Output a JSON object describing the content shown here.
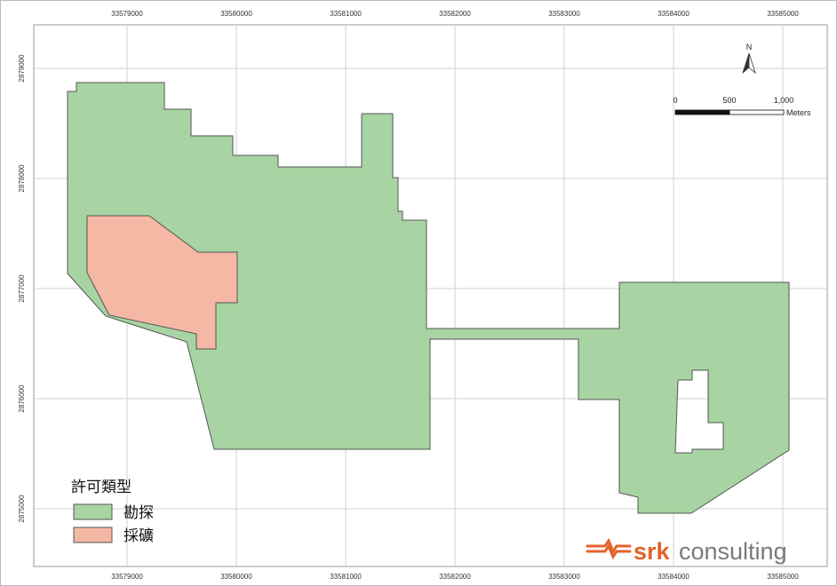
{
  "map": {
    "x_ticks_top": [
      "33579000",
      "33580000",
      "33581000",
      "33582000",
      "33583000",
      "33584000",
      "33585000"
    ],
    "x_ticks_bottom": [
      "33579000",
      "33580000",
      "33581000",
      "33582000",
      "33583000",
      "33584000",
      "33585000"
    ],
    "y_ticks": [
      "2879000",
      "2878000",
      "2877000",
      "2876000",
      "2875000"
    ],
    "north_label": "N",
    "scale": {
      "labels": [
        "0",
        "500",
        "1,000"
      ],
      "unit": "Meters"
    },
    "legend": {
      "title": "許可類型",
      "items": [
        {
          "label": "勘探",
          "color": "#a7d4a2"
        },
        {
          "label": "採礦",
          "color": "#f4b8a4"
        }
      ]
    },
    "brand": {
      "bold": "srk",
      "rest": "consulting",
      "color": "#e2632a",
      "text_color": "#7a7a7a"
    },
    "colors": {
      "grid": "#d2d2d2",
      "outline": "#555555",
      "exploration": "#a7d4a2",
      "mining": "#f4b8a4"
    }
  }
}
